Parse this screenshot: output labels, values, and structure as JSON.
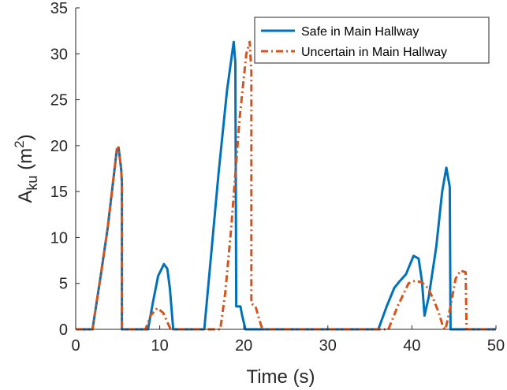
{
  "chart_data": {
    "type": "line",
    "title": "",
    "xlabel": "Time (s)",
    "ylabel": {
      "base": "A",
      "subscript": "ku",
      "unit_open": " (m",
      "superscript": "2",
      "unit_close": ")"
    },
    "xlim": [
      0,
      50
    ],
    "ylim": [
      0,
      35
    ],
    "xticks": [
      0,
      10,
      20,
      30,
      40,
      50
    ],
    "yticks": [
      0,
      5,
      10,
      15,
      20,
      25,
      30,
      35
    ],
    "grid": false,
    "legend_position": "top-right",
    "series": [
      {
        "name": "Safe in Main Hallway",
        "color": "#0072BD",
        "style": "solid",
        "points": [
          [
            0,
            0
          ],
          [
            2,
            0
          ],
          [
            3,
            6
          ],
          [
            3.8,
            11
          ],
          [
            4.5,
            16.5
          ],
          [
            4.9,
            19.6
          ],
          [
            5.1,
            19.8
          ],
          [
            5.4,
            17.5
          ],
          [
            5.5,
            16
          ],
          [
            5.5,
            0
          ],
          [
            8.6,
            0
          ],
          [
            9.2,
            3
          ],
          [
            9.8,
            5.8
          ],
          [
            10.5,
            7.1
          ],
          [
            10.9,
            6.6
          ],
          [
            11.2,
            4.5
          ],
          [
            11.6,
            0
          ],
          [
            15.3,
            0
          ],
          [
            16.2,
            9
          ],
          [
            17,
            17
          ],
          [
            18,
            26
          ],
          [
            18.8,
            31.3
          ],
          [
            19.0,
            29
          ],
          [
            19.1,
            2.5
          ],
          [
            19.6,
            2.5
          ],
          [
            19.8,
            1.5
          ],
          [
            20.2,
            0
          ],
          [
            36,
            0
          ],
          [
            37,
            2.5
          ],
          [
            37.9,
            4.5
          ],
          [
            38.6,
            5.3
          ],
          [
            39.3,
            6
          ],
          [
            40.2,
            8
          ],
          [
            40.8,
            7.7
          ],
          [
            41.2,
            5.2
          ],
          [
            41.5,
            1.5
          ],
          [
            42,
            3.5
          ],
          [
            42.9,
            9
          ],
          [
            43.6,
            15
          ],
          [
            44.1,
            17.6
          ],
          [
            44.5,
            15.5
          ],
          [
            44.6,
            0
          ],
          [
            50,
            0
          ]
        ]
      },
      {
        "name": "Uncertain in Main Hallway",
        "color": "#D95319",
        "style": "dashdot",
        "points": [
          [
            0,
            0
          ],
          [
            2,
            0
          ],
          [
            3,
            6
          ],
          [
            3.8,
            11
          ],
          [
            4.5,
            16.5
          ],
          [
            4.9,
            19.6
          ],
          [
            5.1,
            19.8
          ],
          [
            5.4,
            17.5
          ],
          [
            5.5,
            16
          ],
          [
            5.5,
            0
          ],
          [
            8.3,
            0
          ],
          [
            8.9,
            1.5
          ],
          [
            9.7,
            2.3
          ],
          [
            10.4,
            1.8
          ],
          [
            10.8,
            1.0
          ],
          [
            11.3,
            0
          ],
          [
            17.2,
            0
          ],
          [
            17.8,
            4
          ],
          [
            18.5,
            11
          ],
          [
            19.5,
            23
          ],
          [
            20.3,
            30
          ],
          [
            20.7,
            31.3
          ],
          [
            20.9,
            28
          ],
          [
            20.9,
            2.8
          ],
          [
            21.4,
            2.5
          ],
          [
            21.7,
            1.5
          ],
          [
            22.2,
            0
          ],
          [
            37.2,
            0
          ],
          [
            38.3,
            2.5
          ],
          [
            39.6,
            5
          ],
          [
            40.4,
            5.3
          ],
          [
            41.2,
            5.1
          ],
          [
            41.9,
            4.5
          ],
          [
            42.6,
            3.2
          ],
          [
            43.2,
            1.8
          ],
          [
            43.7,
            0.3
          ],
          [
            44,
            0
          ],
          [
            44.6,
            2.5
          ],
          [
            45.2,
            5.5
          ],
          [
            45.8,
            6.4
          ],
          [
            46.4,
            6.2
          ],
          [
            46.5,
            0
          ],
          [
            50,
            0
          ]
        ]
      }
    ]
  }
}
